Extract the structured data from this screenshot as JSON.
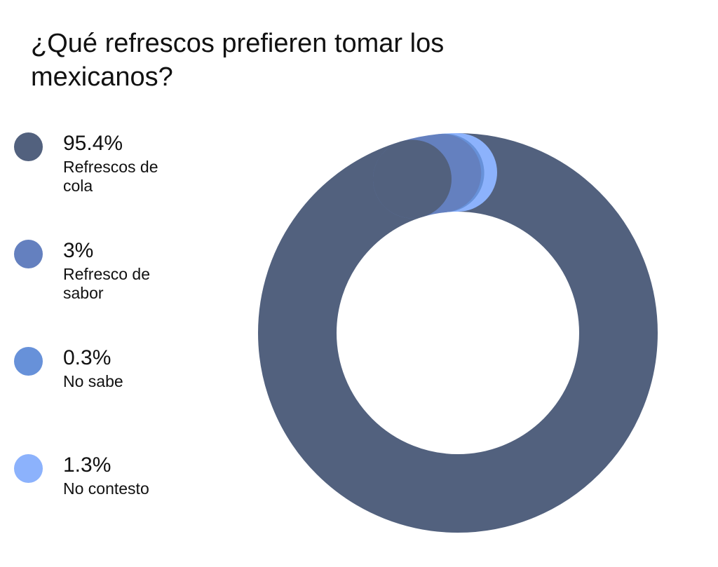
{
  "title": "¿Qué refrescos prefieren tomar los mexicanos?",
  "legend": [
    {
      "value": "95.4%",
      "label": "Refrescos de cola",
      "color": "#52617e"
    },
    {
      "value": "3%",
      "label": "Refresco de sabor",
      "color": "#6480bf"
    },
    {
      "value": "0.3%",
      "label": "No sabe",
      "color": "#6791d9"
    },
    {
      "value": "1.3%",
      "label": "No contesto",
      "color": "#8cb2fc"
    }
  ],
  "chart_data": {
    "type": "pie",
    "variant": "donut",
    "title": "¿Qué refrescos prefieren tomar los mexicanos?",
    "categories": [
      "Refrescos de cola",
      "Refresco de sabor",
      "No sabe",
      "No contesto"
    ],
    "values": [
      95.4,
      3,
      0.3,
      1.3
    ],
    "unit": "%",
    "colors": [
      "#52617e",
      "#6480bf",
      "#6791d9",
      "#8cb2fc"
    ],
    "legend_position": "left",
    "start_angle": "top, clockwise"
  }
}
